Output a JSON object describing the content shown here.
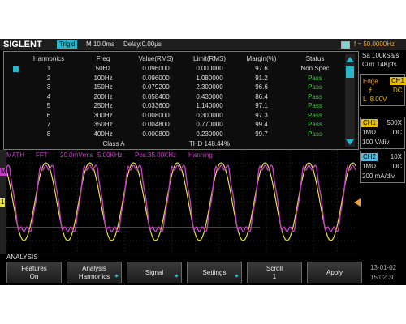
{
  "top_bar": {
    "brand": "SIGLENT",
    "trigger_status": "Trig'd",
    "timebase": "M 10.0ms",
    "delay": "Delay:0.00µs",
    "frequency": "f = 50.0000Hz"
  },
  "table": {
    "columns": [
      "Harmonics",
      "Freq",
      "Value(RMS)",
      "Limit(RMS)",
      "Margin(%)",
      "Status"
    ],
    "rows": [
      [
        "1",
        "50Hz",
        "0.096000",
        "0.000000",
        "97.6",
        "Non Spec"
      ],
      [
        "2",
        "100Hz",
        "0.096000",
        "1.080000",
        "91.2",
        "Pass"
      ],
      [
        "3",
        "150Hz",
        "0.079200",
        "2.300000",
        "96.6",
        "Pass"
      ],
      [
        "4",
        "200Hz",
        "0.058400",
        "0.430000",
        "86.4",
        "Pass"
      ],
      [
        "5",
        "250Hz",
        "0.033600",
        "1.140000",
        "97.1",
        "Pass"
      ],
      [
        "6",
        "300Hz",
        "0.008000",
        "0.300000",
        "97.3",
        "Pass"
      ],
      [
        "7",
        "350Hz",
        "0.004800",
        "0.770000",
        "99.4",
        "Pass"
      ],
      [
        "8",
        "400Hz",
        "0.000800",
        "0.230000",
        "99.7",
        "Pass"
      ]
    ],
    "footer": {
      "class": "Class A",
      "thd": "THD 148.44%"
    }
  },
  "side_panel": {
    "sample_rate": "Sa 100kSa/s",
    "memory": "Curr 14Kpts",
    "trigger": {
      "type": "Edge",
      "source": "CH1",
      "coupling": "DC",
      "level": "L  8.00V"
    },
    "ch1": {
      "name": "CH1",
      "probe": "500X",
      "impedance": "1MΩ",
      "coupling": "DC",
      "scale": "100 V/div"
    },
    "ch2": {
      "name": "CH2",
      "probe": "10X",
      "impedance": "1MΩ",
      "coupling": "DC",
      "scale": "200 mA/div"
    }
  },
  "math_header": {
    "label": "MATH",
    "mode": "FFT",
    "scale": "20.0mVrms",
    "span": "5.00KHz",
    "position": "Pos:35.00KHz",
    "window": "Hanning"
  },
  "markers": {
    "ch1": "1",
    "math": "M"
  },
  "menu": {
    "title": "ANALYSIS",
    "buttons": [
      {
        "label": "Features",
        "value": "On"
      },
      {
        "label": "Analysis",
        "value": "Harmonics"
      },
      {
        "label": "Signal"
      },
      {
        "label": "Settings"
      },
      {
        "label": "Scroll",
        "value": "1"
      },
      {
        "label": "Apply"
      }
    ]
  },
  "clock": {
    "date": "13-01-02",
    "time": "15:02:30"
  }
}
